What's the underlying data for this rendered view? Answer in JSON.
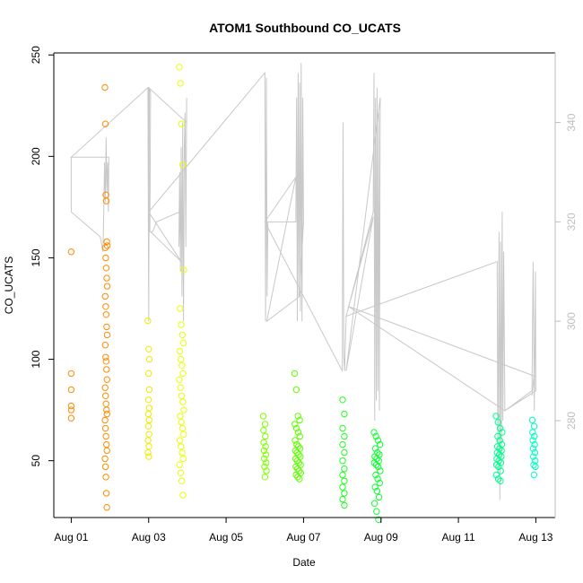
{
  "chart_data": {
    "type": "scatter",
    "title": "ATOM1 Southbound CO_UCATS",
    "xlabel": "Date",
    "ylabel": "CO_UCATS",
    "x_ticks": [
      "Aug 01",
      "Aug 03",
      "Aug 05",
      "Aug 07",
      "Aug 09",
      "Aug 11",
      "Aug 13"
    ],
    "x_tick_days": [
      1,
      3,
      5,
      7,
      9,
      11,
      13
    ],
    "xlim": [
      0.55,
      13.5
    ],
    "y_ticks": [
      "50",
      "100",
      "150",
      "200",
      "250"
    ],
    "y_tick_values": [
      50,
      100,
      150,
      200,
      250
    ],
    "ylim": [
      22,
      251
    ],
    "y2_ticks": [
      "280",
      "300",
      "320",
      "340"
    ],
    "y2_tick_values": [
      280,
      300,
      320,
      340
    ],
    "y2lim": [
      260.5,
      354
    ],
    "grid": false,
    "colors": {
      "line": "#c8c8c8",
      "right_axis": "#bebebe",
      "axes": "#000000"
    },
    "point_groups": [
      {
        "x": 1.0,
        "color": "#ff8c00",
        "values": [
          153,
          93,
          85,
          77,
          75,
          71
        ]
      },
      {
        "x": 1.9,
        "color": "#ff8c00",
        "spread": 0.03,
        "values": [
          234,
          216,
          181,
          178,
          158,
          156,
          155,
          150,
          145,
          140,
          136,
          131,
          126,
          122,
          116,
          112,
          107,
          101,
          99,
          95,
          90,
          86,
          82,
          78,
          75,
          73,
          70,
          66,
          62,
          58,
          55,
          51,
          47,
          42,
          34,
          27
        ]
      },
      {
        "x": 3.0,
        "color": "#f0ea00",
        "spread": 0.02,
        "values": [
          119,
          105,
          100,
          93,
          85,
          80,
          76,
          73,
          70,
          67,
          63,
          60,
          57,
          54,
          52
        ]
      },
      {
        "x": 3.85,
        "color": "#e8ff00",
        "spread": 0.06,
        "values": [
          244,
          236,
          216,
          196,
          144,
          125,
          117,
          112,
          108,
          104,
          100,
          97,
          93,
          90,
          86,
          82,
          79,
          75,
          72,
          69,
          66,
          63,
          60,
          57,
          54,
          51,
          48,
          44,
          40,
          33
        ]
      },
      {
        "x": 6.0,
        "color": "#80ff00",
        "spread": 0.04,
        "values": [
          72,
          68,
          65,
          62,
          59,
          57,
          55,
          53,
          51,
          49,
          47,
          45,
          42
        ]
      },
      {
        "x": 6.85,
        "color": "#60ff00",
        "spread": 0.08,
        "values": [
          93,
          85,
          72,
          70,
          68,
          66,
          64,
          62,
          60,
          58,
          57,
          56,
          55,
          54,
          53,
          52,
          51,
          50,
          49,
          48,
          47,
          46,
          45,
          44,
          43,
          42,
          41
        ]
      },
      {
        "x": 8.05,
        "color": "#20ff20",
        "spread": 0.04,
        "values": [
          80,
          73,
          66,
          62,
          58,
          54,
          50,
          46,
          43,
          40,
          37,
          34,
          31,
          28
        ]
      },
      {
        "x": 8.9,
        "color": "#10ff30",
        "spread": 0.08,
        "values": [
          64,
          62,
          60,
          58,
          56,
          54,
          53,
          52,
          51,
          50,
          49,
          48,
          47,
          45,
          43,
          41,
          39,
          37,
          35,
          32,
          29,
          25,
          21
        ]
      },
      {
        "x": 12.05,
        "color": "#00ff90",
        "spread": 0.08,
        "values": [
          72,
          69,
          66,
          64,
          62,
          60,
          58,
          57,
          56,
          55,
          54,
          53,
          52,
          51,
          50,
          49,
          48,
          47,
          45,
          43,
          41,
          40
        ]
      },
      {
        "x": 12.95,
        "color": "#00ffc0",
        "spread": 0.04,
        "values": [
          70,
          67,
          64,
          62,
          60,
          58,
          56,
          54,
          52,
          50,
          48,
          47,
          43
        ]
      }
    ],
    "line_y2": {
      "name": "",
      "color": "#c8c8c8",
      "points": [
        [
          1.0,
          333
        ],
        [
          1.0,
          322
        ],
        [
          1.75,
          317
        ],
        [
          1.82,
          314
        ],
        [
          1.84,
          322
        ],
        [
          1.86,
          332
        ],
        [
          1.88,
          324
        ],
        [
          1.9,
          337
        ],
        [
          1.92,
          326
        ],
        [
          1.94,
          332
        ],
        [
          1.96,
          322
        ],
        [
          1.97,
          332
        ],
        [
          1.97,
          333
        ],
        [
          1.0,
          333
        ],
        [
          2.98,
          347
        ],
        [
          3.0,
          300
        ],
        [
          3.02,
          347
        ],
        [
          3.05,
          346
        ],
        [
          3.03,
          318
        ],
        [
          3.1,
          318
        ],
        [
          3.2,
          320
        ],
        [
          3.8,
          322
        ],
        [
          3.78,
          315
        ],
        [
          3.8,
          330
        ],
        [
          3.82,
          310
        ],
        [
          3.84,
          335
        ],
        [
          3.86,
          305
        ],
        [
          3.88,
          340
        ],
        [
          3.9,
          300
        ],
        [
          3.92,
          335
        ],
        [
          3.94,
          342
        ],
        [
          3.96,
          315
        ],
        [
          3.98,
          345
        ],
        [
          3.98,
          340
        ],
        [
          3.0,
          347
        ],
        [
          3.0,
          318
        ],
        [
          3.05,
          318
        ],
        [
          3.84,
          312
        ],
        [
          3.0,
          322
        ],
        [
          6.0,
          350
        ],
        [
          6.02,
          300
        ],
        [
          6.04,
          349
        ],
        [
          6.06,
          305
        ],
        [
          6.08,
          320
        ],
        [
          6.8,
          320
        ],
        [
          6.82,
          345
        ],
        [
          6.84,
          300
        ],
        [
          6.86,
          350
        ],
        [
          6.88,
          305
        ],
        [
          6.9,
          348
        ],
        [
          6.92,
          302
        ],
        [
          6.94,
          352
        ],
        [
          6.96,
          300
        ],
        [
          6.98,
          345
        ],
        [
          7.0,
          320
        ],
        [
          6.9,
          305
        ],
        [
          6.05,
          300
        ],
        [
          6.8,
          329
        ],
        [
          6.0,
          320
        ],
        [
          8.0,
          290
        ],
        [
          8.02,
          340
        ],
        [
          8.04,
          293
        ],
        [
          8.06,
          290
        ],
        [
          8.1,
          301
        ],
        [
          8.8,
          322
        ],
        [
          8.82,
          350
        ],
        [
          8.84,
          280
        ],
        [
          8.86,
          345
        ],
        [
          8.88,
          284
        ],
        [
          8.9,
          347
        ],
        [
          8.92,
          286
        ],
        [
          8.94,
          342
        ],
        [
          8.96,
          282
        ],
        [
          8.98,
          345
        ],
        [
          8.1,
          290
        ],
        [
          8.8,
          321
        ],
        [
          8.1,
          301
        ],
        [
          12.0,
          312
        ],
        [
          12.02,
          270
        ],
        [
          12.05,
          318
        ],
        [
          12.07,
          264
        ],
        [
          12.09,
          316
        ],
        [
          12.11,
          272
        ],
        [
          12.13,
          322
        ],
        [
          12.15,
          280
        ],
        [
          12.17,
          314
        ],
        [
          12.2,
          282
        ],
        [
          12.9,
          286
        ],
        [
          12.93,
          312
        ],
        [
          12.96,
          282
        ],
        [
          12.99,
          310
        ],
        [
          13.0,
          286
        ],
        [
          12.2,
          282
        ],
        [
          8.15,
          303
        ],
        [
          12.95,
          289
        ],
        [
          12.9,
          285
        ]
      ]
    }
  }
}
